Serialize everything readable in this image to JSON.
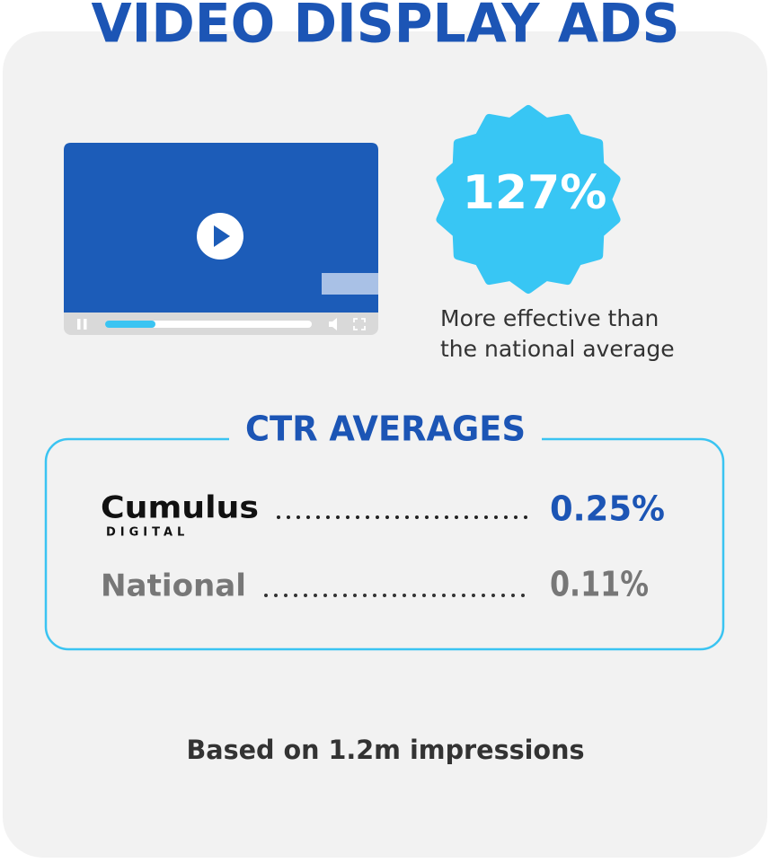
{
  "header": {
    "title": "VIDEO DISPLAY ADS"
  },
  "badge": {
    "value": "127%",
    "description": [
      "More effective than",
      "the national average"
    ]
  },
  "ctr": {
    "heading": "CTR AVERAGES",
    "rows": [
      {
        "name": "Cumulus",
        "subname": "DIGITAL",
        "value": "0.25%"
      },
      {
        "name": "National",
        "value": "0.11%"
      }
    ]
  },
  "footer": "Based on 1.2m impressions"
}
